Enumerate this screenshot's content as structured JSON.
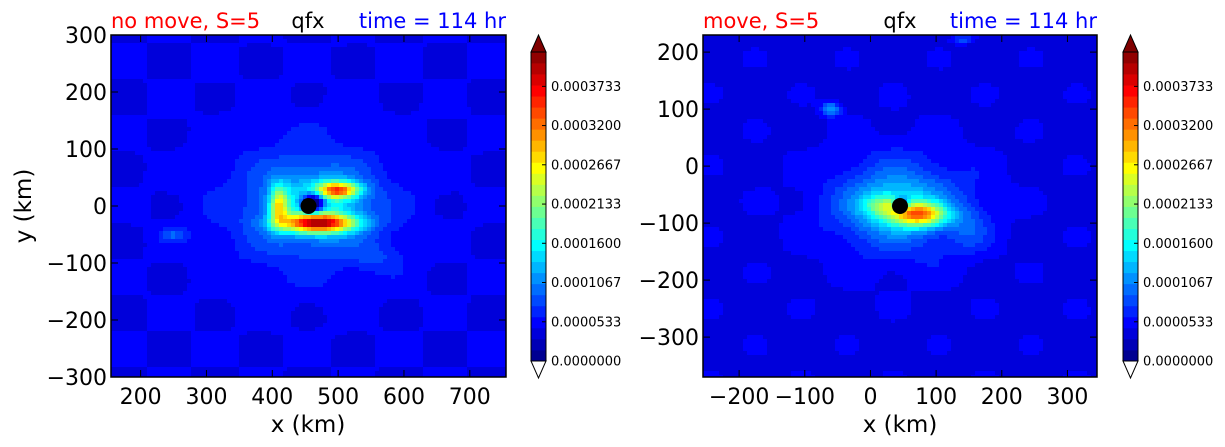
{
  "colormap": {
    "stops": [
      "#00007f",
      "#0000ff",
      "#007fff",
      "#00ffff",
      "#7fff7f",
      "#ffff00",
      "#ff7f00",
      "#ff0000",
      "#7f0000"
    ],
    "levels": 28,
    "range": [
      0,
      0.00042
    ]
  },
  "chart_data": [
    {
      "type": "heatmap",
      "title_left": "no move, S=5",
      "title_center": "qfx",
      "title_right": "time = 114 hr",
      "title_colors": {
        "left": "#ff0000",
        "center": "#000000",
        "right": "#0000ff"
      },
      "xlabel": "x (km)",
      "ylabel": "y (km)",
      "xlim": [
        155,
        755
      ],
      "ylim": [
        -300,
        300
      ],
      "xticks": [
        "200",
        "300",
        "400",
        "500",
        "600",
        "700"
      ],
      "xtick_values": [
        200,
        300,
        400,
        500,
        600,
        700
      ],
      "yticks": [
        "300",
        "200",
        "100",
        "0",
        "−100",
        "−200",
        "−300"
      ],
      "ytick_values": [
        300,
        200,
        100,
        0,
        -100,
        -200,
        -300
      ],
      "center_marker": [
        455,
        0
      ],
      "field": {
        "background": 4.5e-05,
        "blobs": [
          {
            "x": 455,
            "y": 0,
            "sx": 130,
            "sy": 115,
            "amp": 5e-05
          },
          {
            "x": 470,
            "y": 0,
            "sx": 65,
            "sy": 55,
            "amp": 8e-05
          },
          {
            "x": 470,
            "y": -30,
            "sx": 55,
            "sy": 16,
            "amp": 0.00027
          },
          {
            "x": 500,
            "y": 28,
            "sx": 32,
            "sy": 14,
            "amp": 0.00022
          },
          {
            "x": 410,
            "y": 0,
            "sx": 14,
            "sy": 35,
            "amp": 0.00016
          },
          {
            "x": 250,
            "y": -50,
            "sx": 20,
            "sy": 12,
            "amp": 4e-05
          },
          {
            "x": 560,
            "y": -90,
            "sx": 40,
            "sy": 25,
            "amp": 2e-05
          }
        ],
        "hole": {
          "x": 462,
          "y": 5,
          "sx": 18,
          "sy": 18,
          "amp": -0.00022
        }
      },
      "colorbar_ticks": [
        "0.0000000",
        "0.0000533",
        "0.0001067",
        "0.0001600",
        "0.0002133",
        "0.0002667",
        "0.0003200",
        "0.0003733"
      ],
      "colorbar_tick_values": [
        0,
        5.33e-05,
        0.0001067,
        0.00016,
        0.0002133,
        0.0002667,
        0.00032,
        0.0003733
      ]
    },
    {
      "type": "heatmap",
      "title_left": "move, S=5",
      "title_center": "qfx",
      "title_right": "time = 114 hr",
      "title_colors": {
        "left": "#ff0000",
        "center": "#000000",
        "right": "#0000ff"
      },
      "xlabel": "x (km)",
      "ylabel": "",
      "xlim": [
        -255,
        345
      ],
      "ylim": [
        -370,
        230
      ],
      "xticks": [
        "−200",
        "−100",
        "0",
        "100",
        "200",
        "300"
      ],
      "xtick_values": [
        -200,
        -100,
        0,
        100,
        200,
        300
      ],
      "yticks": [
        "200",
        "100",
        "0",
        "−100",
        "−200",
        "−300"
      ],
      "ytick_values": [
        200,
        100,
        0,
        -100,
        -200,
        -300
      ],
      "center_marker": [
        45,
        -70
      ],
      "field": {
        "background": 4e-05,
        "blobs": [
          {
            "x": 45,
            "y": -70,
            "sx": 120,
            "sy": 100,
            "amp": 5e-05
          },
          {
            "x": 40,
            "y": -70,
            "sx": 70,
            "sy": 50,
            "amp": 7e-05
          },
          {
            "x": 75,
            "y": -85,
            "sx": 40,
            "sy": 20,
            "amp": 0.0002
          },
          {
            "x": 20,
            "y": -70,
            "sx": 30,
            "sy": 18,
            "amp": 8e-05
          },
          {
            "x": -60,
            "y": 100,
            "sx": 14,
            "sy": 12,
            "amp": 8e-05
          },
          {
            "x": 140,
            "y": 222,
            "sx": 15,
            "sy": 7,
            "amp": 5e-05
          },
          {
            "x": 150,
            "y": -110,
            "sx": 30,
            "sy": 40,
            "amp": 3e-05
          }
        ],
        "hole": {
          "x": 48,
          "y": -65,
          "sx": 12,
          "sy": 12,
          "amp": -0.00012
        }
      },
      "colorbar_ticks": [
        "0.0000000",
        "0.0000533",
        "0.0001067",
        "0.0001600",
        "0.0002133",
        "0.0002667",
        "0.0003200",
        "0.0003733"
      ],
      "colorbar_tick_values": [
        0,
        5.33e-05,
        0.0001067,
        0.00016,
        0.0002133,
        0.0002667,
        0.00032,
        0.0003733
      ]
    }
  ]
}
